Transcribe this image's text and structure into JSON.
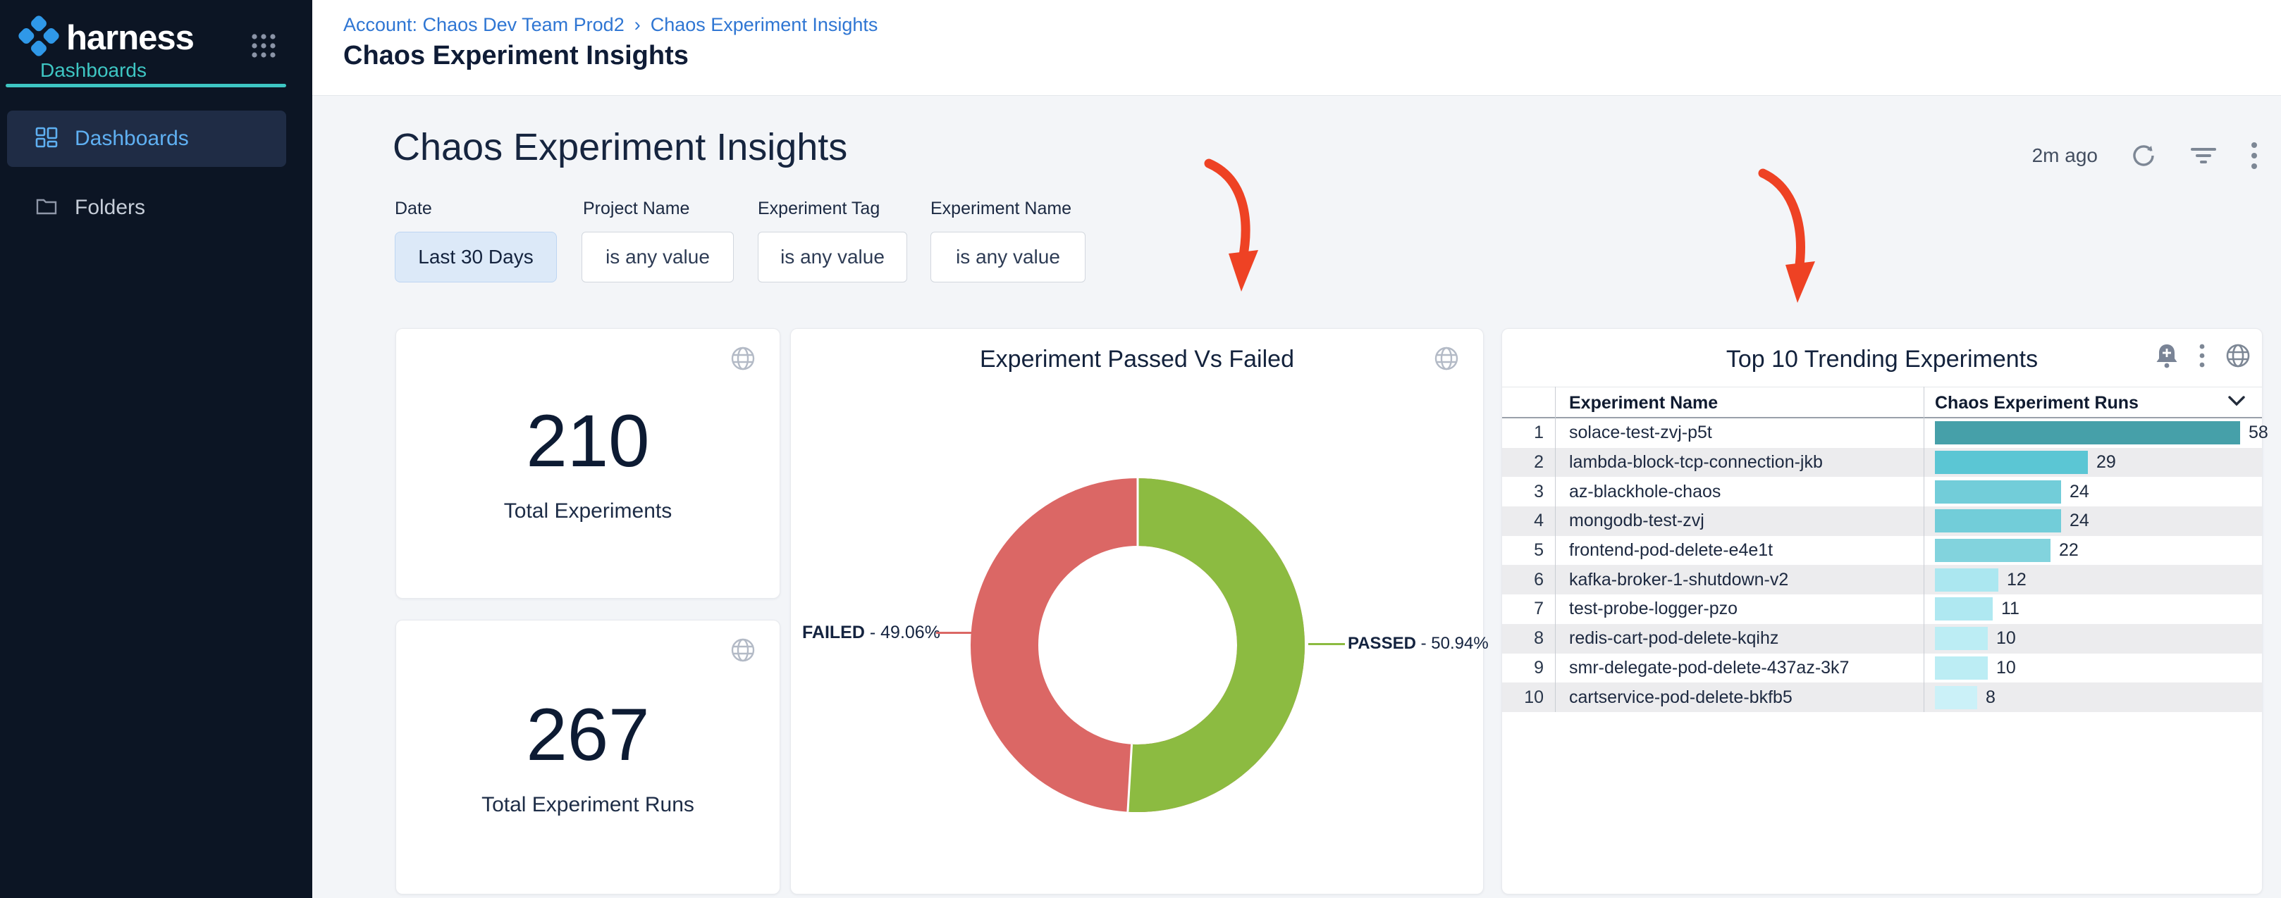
{
  "app": {
    "logo_text": "harness",
    "logo_subtitle": "Dashboards"
  },
  "sidebar": {
    "items": [
      {
        "label": "Dashboards",
        "active": true
      },
      {
        "label": "Folders",
        "active": false
      }
    ]
  },
  "header": {
    "breadcrumb": {
      "account_link": "Account: Chaos Dev Team Prod2",
      "separator": "›",
      "current": "Chaos Experiment Insights"
    },
    "title": "Chaos Experiment Insights"
  },
  "toolbar": {
    "heading": "Chaos Experiment Insights",
    "last_refreshed": "2m ago"
  },
  "filters": [
    {
      "label": "Date",
      "value": "Last 30 Days",
      "active": true
    },
    {
      "label": "Project Name",
      "value": "is any value",
      "active": false
    },
    {
      "label": "Experiment Tag",
      "value": "is any value",
      "active": false
    },
    {
      "label": "Experiment Name",
      "value": "is any value",
      "active": false
    }
  ],
  "stats": [
    {
      "value": "210",
      "label": "Total Experiments"
    },
    {
      "value": "267",
      "label": "Total Experiment Runs"
    }
  ],
  "chart_data": [
    {
      "type": "pie",
      "subtype": "donut",
      "title": "Experiment Passed Vs Failed",
      "slices": [
        {
          "label": "FAILED",
          "value": 49.06,
          "pct_text": "- 49.06%",
          "color": "#DB6765"
        },
        {
          "label": "PASSED",
          "value": 50.94,
          "pct_text": "- 50.94%",
          "color": "#8CBB41"
        }
      ],
      "legend_position": "sides"
    },
    {
      "type": "bar",
      "orientation": "horizontal",
      "title": "Top 10 Trending Experiments",
      "columns": [
        "Experiment Name",
        "Chaos Experiment Runs"
      ],
      "xmax": 58,
      "rows": [
        {
          "rank": "1",
          "name": "solace-test-zvj-p5t",
          "value": 58,
          "color": "#46A0A9"
        },
        {
          "rank": "2",
          "name": "lambda-block-tcp-connection-jkb",
          "value": 29,
          "color": "#5BC6D4"
        },
        {
          "rank": "3",
          "name": "az-blackhole-chaos",
          "value": 24,
          "color": "#72CDD9"
        },
        {
          "rank": "4",
          "name": "mongodb-test-zvj",
          "value": 24,
          "color": "#72CDD9"
        },
        {
          "rank": "5",
          "name": "frontend-pod-delete-e4e1t",
          "value": 22,
          "color": "#82D3DD"
        },
        {
          "rank": "6",
          "name": "kafka-broker-1-shutdown-v2",
          "value": 12,
          "color": "#ABE7F0"
        },
        {
          "rank": "7",
          "name": "test-probe-logger-pzo",
          "value": 11,
          "color": "#AFE8F1"
        },
        {
          "rank": "8",
          "name": "redis-cart-pod-delete-kqihz",
          "value": 10,
          "color": "#BCEDF4"
        },
        {
          "rank": "9",
          "name": "smr-delegate-pod-delete-437az-3k7",
          "value": 10,
          "color": "#BCEDF4"
        },
        {
          "rank": "10",
          "name": "cartservice-pod-delete-bkfb5",
          "value": 8,
          "color": "#CBF1F8"
        }
      ]
    }
  ],
  "annotations": {
    "arrow_color": "#EE4224"
  },
  "colors": {
    "sidebar_bg": "#0C1524",
    "sidebar_active_bg": "#1F2C45",
    "teal_accent": "#3EC6C3",
    "nav_active_text": "#5FB0F2",
    "breadcrumb_link": "#2F76D3",
    "content_bg": "#F3F5F8",
    "failed_red": "#DB6765",
    "passed_green": "#8CBB41",
    "date_filter_bg": "#DCE9F8"
  }
}
